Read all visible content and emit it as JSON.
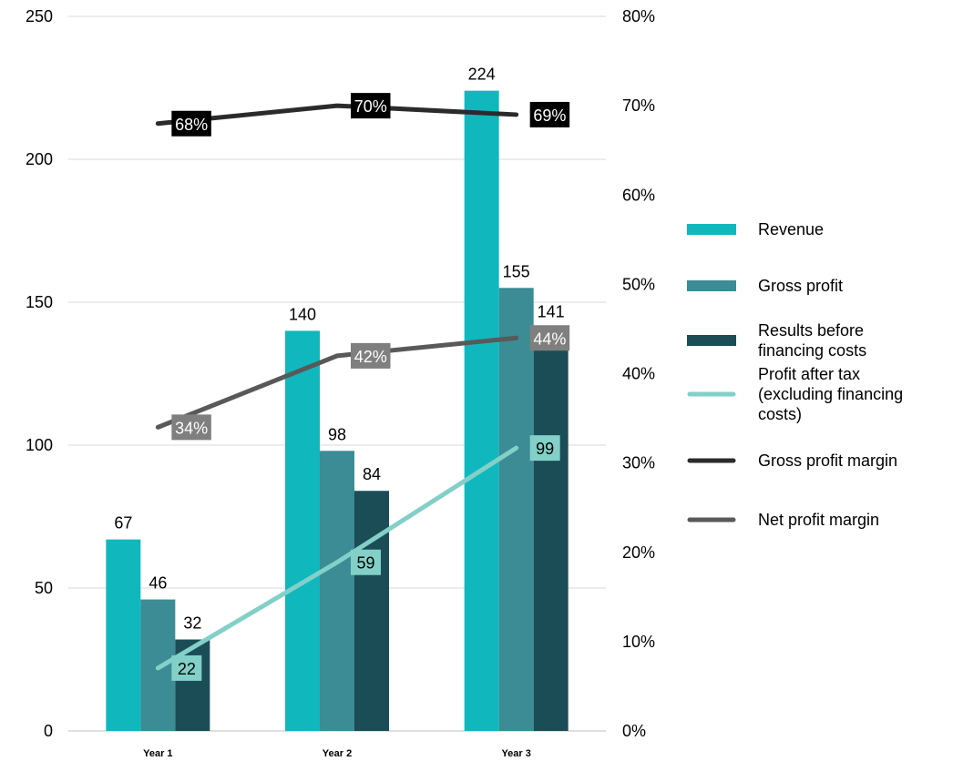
{
  "chart_data": {
    "type": "bar",
    "title": "",
    "categories": [
      "Year 1",
      "Year 2",
      "Year 3"
    ],
    "y_left": {
      "range": [
        0,
        250
      ],
      "ticks": [
        "0",
        "50",
        "100",
        "150",
        "200",
        "250"
      ]
    },
    "y_right": {
      "range": [
        0,
        80
      ],
      "ticks": [
        "0%",
        "10%",
        "20%",
        "30%",
        "40%",
        "50%",
        "60%",
        "70%",
        "80%"
      ]
    },
    "grid": true,
    "legend_position": "right",
    "bar_series": [
      {
        "name": "Revenue",
        "color": "#10b8be",
        "values": [
          67,
          140,
          224
        ],
        "labels": [
          "67",
          "140",
          "224"
        ]
      },
      {
        "name": "Gross profit",
        "color": "#3b8c94",
        "values": [
          46,
          98,
          155
        ],
        "labels": [
          "46",
          "98",
          "155"
        ]
      },
      {
        "name": "Results before financing costs",
        "color": "#1b4d57",
        "values": [
          32,
          84,
          141
        ],
        "labels": [
          "32",
          "84",
          "141"
        ]
      }
    ],
    "line_series": [
      {
        "name": "Profit after tax (excluding financing costs)",
        "axis": "left",
        "color": "#82d0c8",
        "label_bg": "#82d0c8",
        "label_color": "#000000",
        "values": [
          22,
          59,
          99
        ],
        "labels": [
          "22",
          "59",
          "99"
        ]
      },
      {
        "name": "Gross profit margin",
        "axis": "right",
        "color": "#2b2b2b",
        "label_bg": "#000000",
        "label_color": "#ffffff",
        "values": [
          68,
          70,
          69
        ],
        "labels": [
          "68%",
          "70%",
          "69%"
        ]
      },
      {
        "name": "Net profit margin",
        "axis": "right",
        "color": "#595959",
        "label_bg": "#7f7f7f",
        "label_color": "#ffffff",
        "values": [
          34,
          42,
          44
        ],
        "labels": [
          "34%",
          "42%",
          "44%"
        ]
      }
    ],
    "legend": [
      {
        "lines": [
          "Revenue"
        ],
        "kind": "bar",
        "color": "#10b8be"
      },
      {
        "lines": [
          "Gross profit"
        ],
        "kind": "bar",
        "color": "#3b8c94"
      },
      {
        "lines": [
          "Results before",
          "financing costs"
        ],
        "kind": "bar",
        "color": "#1b4d57"
      },
      {
        "lines": [
          "Profit after tax",
          "(excluding financing",
          "costs)"
        ],
        "kind": "line",
        "color": "#82d0c8"
      },
      {
        "lines": [
          "Gross profit margin"
        ],
        "kind": "line",
        "color": "#2b2b2b"
      },
      {
        "lines": [
          "Net profit margin"
        ],
        "kind": "line",
        "color": "#595959"
      }
    ]
  }
}
